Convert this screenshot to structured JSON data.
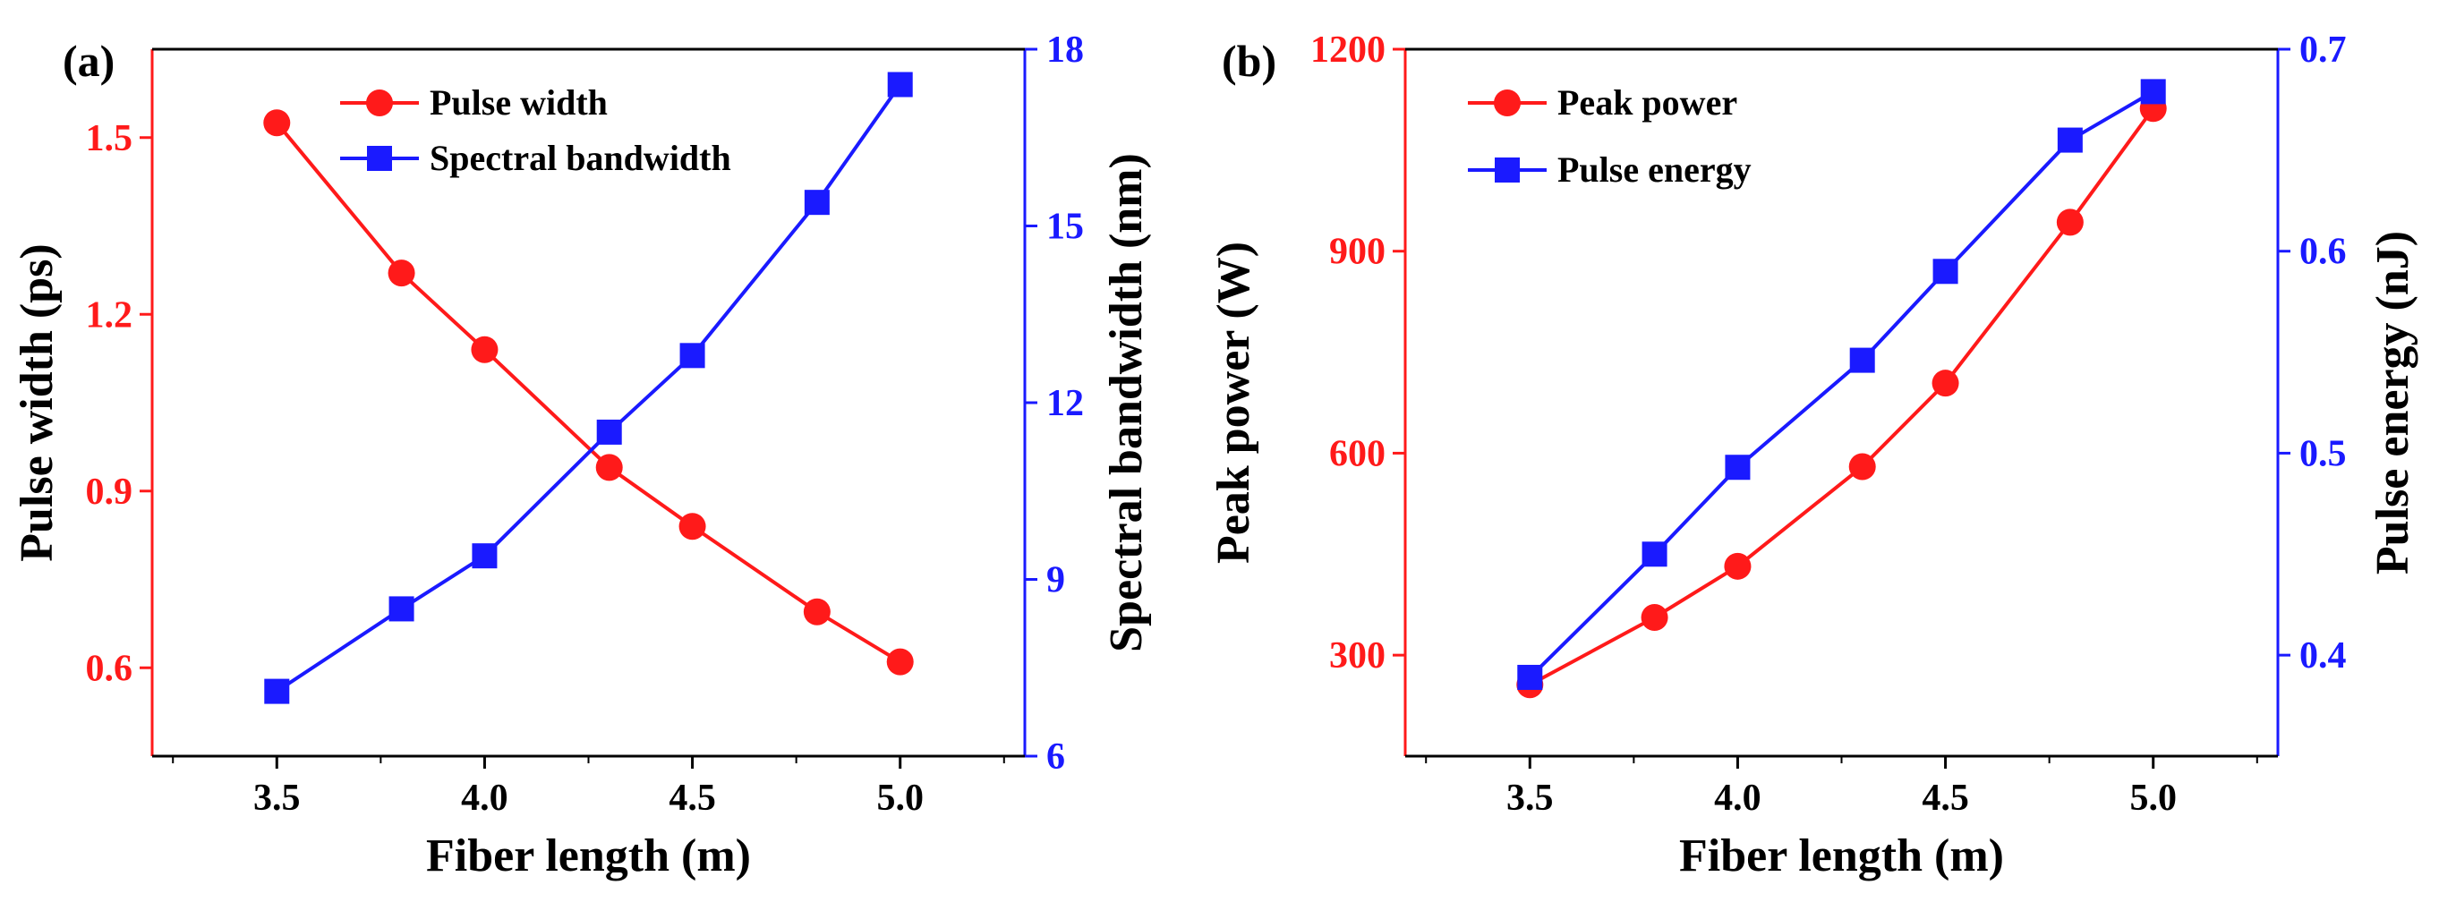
{
  "figure": {
    "description": "Pulse characteristics versus fiber length"
  },
  "colors": {
    "red": "#ff1a1a",
    "blue": "#1a1aff",
    "black": "#000000"
  },
  "chart_data": [
    {
      "panel_label": "(a)",
      "type": "line",
      "x": [
        3.5,
        3.8,
        4.0,
        4.3,
        4.5,
        4.8,
        5.0
      ],
      "xlabel": "Fiber length (m)",
      "xlim": [
        3.2,
        5.3
      ],
      "xticks": [
        3.5,
        4.0,
        4.5,
        5.0
      ],
      "xtick_labels": [
        "3.5",
        "4.0",
        "4.5",
        "5.0"
      ],
      "left_axis": {
        "label": "Pulse width (ps)",
        "color": "#ff1a1a",
        "range": [
          0.45,
          1.65
        ],
        "ticks": [
          0.6,
          0.9,
          1.2,
          1.5
        ],
        "tick_labels": [
          "0.6",
          "0.9",
          "1.2",
          "1.5"
        ]
      },
      "right_axis": {
        "label": "Spectral bandwidth (nm)",
        "color": "#1a1aff",
        "range": [
          6,
          18
        ],
        "ticks": [
          6,
          9,
          12,
          15,
          18
        ],
        "tick_labels": [
          "6",
          "9",
          "12",
          "15",
          "18"
        ]
      },
      "series": [
        {
          "name": "Pulse width",
          "axis": "left",
          "marker": "circle",
          "color": "#ff1a1a",
          "values": [
            1.525,
            1.27,
            1.14,
            0.94,
            0.84,
            0.695,
            0.61
          ]
        },
        {
          "name": "Spectral bandwidth",
          "axis": "right",
          "marker": "square",
          "color": "#1a1aff",
          "values": [
            7.1,
            8.5,
            9.4,
            11.5,
            12.8,
            15.4,
            17.4
          ]
        }
      ],
      "legend": {
        "placement": "top-center",
        "items": [
          "Pulse width",
          "Spectral bandwidth"
        ]
      }
    },
    {
      "panel_label": "(b)",
      "type": "line",
      "x": [
        3.5,
        3.8,
        4.0,
        4.3,
        4.5,
        4.8,
        5.0
      ],
      "xlabel": "Fiber length (m)",
      "xlim": [
        3.2,
        5.3
      ],
      "xticks": [
        3.5,
        4.0,
        4.5,
        5.0
      ],
      "xtick_labels": [
        "3.5",
        "4.0",
        "4.5",
        "5.0"
      ],
      "left_axis": {
        "label": "Peak power (W)",
        "color": "#ff1a1a",
        "range": [
          150,
          1200
        ],
        "ticks": [
          300,
          600,
          900,
          1200
        ],
        "tick_labels": [
          "300",
          "600",
          "900",
          "1200"
        ]
      },
      "right_axis": {
        "label": "Pulse energy (nJ)",
        "color": "#1a1aff",
        "range": [
          0.35,
          0.7
        ],
        "ticks": [
          0.4,
          0.5,
          0.6,
          0.7
        ],
        "tick_labels": [
          "0.4",
          "0.5",
          "0.6",
          "0.7"
        ]
      },
      "series": [
        {
          "name": "Peak power",
          "axis": "left",
          "marker": "circle",
          "color": "#ff1a1a",
          "values": [
            256,
            356,
            432,
            580,
            704,
            943,
            1112
          ]
        },
        {
          "name": "Pulse energy",
          "axis": "right",
          "marker": "square",
          "color": "#1a1aff",
          "values": [
            0.389,
            0.45,
            0.493,
            0.546,
            0.59,
            0.655,
            0.679
          ]
        }
      ],
      "legend": {
        "placement": "top-left",
        "items": [
          "Peak power",
          "Pulse energy"
        ]
      }
    }
  ]
}
